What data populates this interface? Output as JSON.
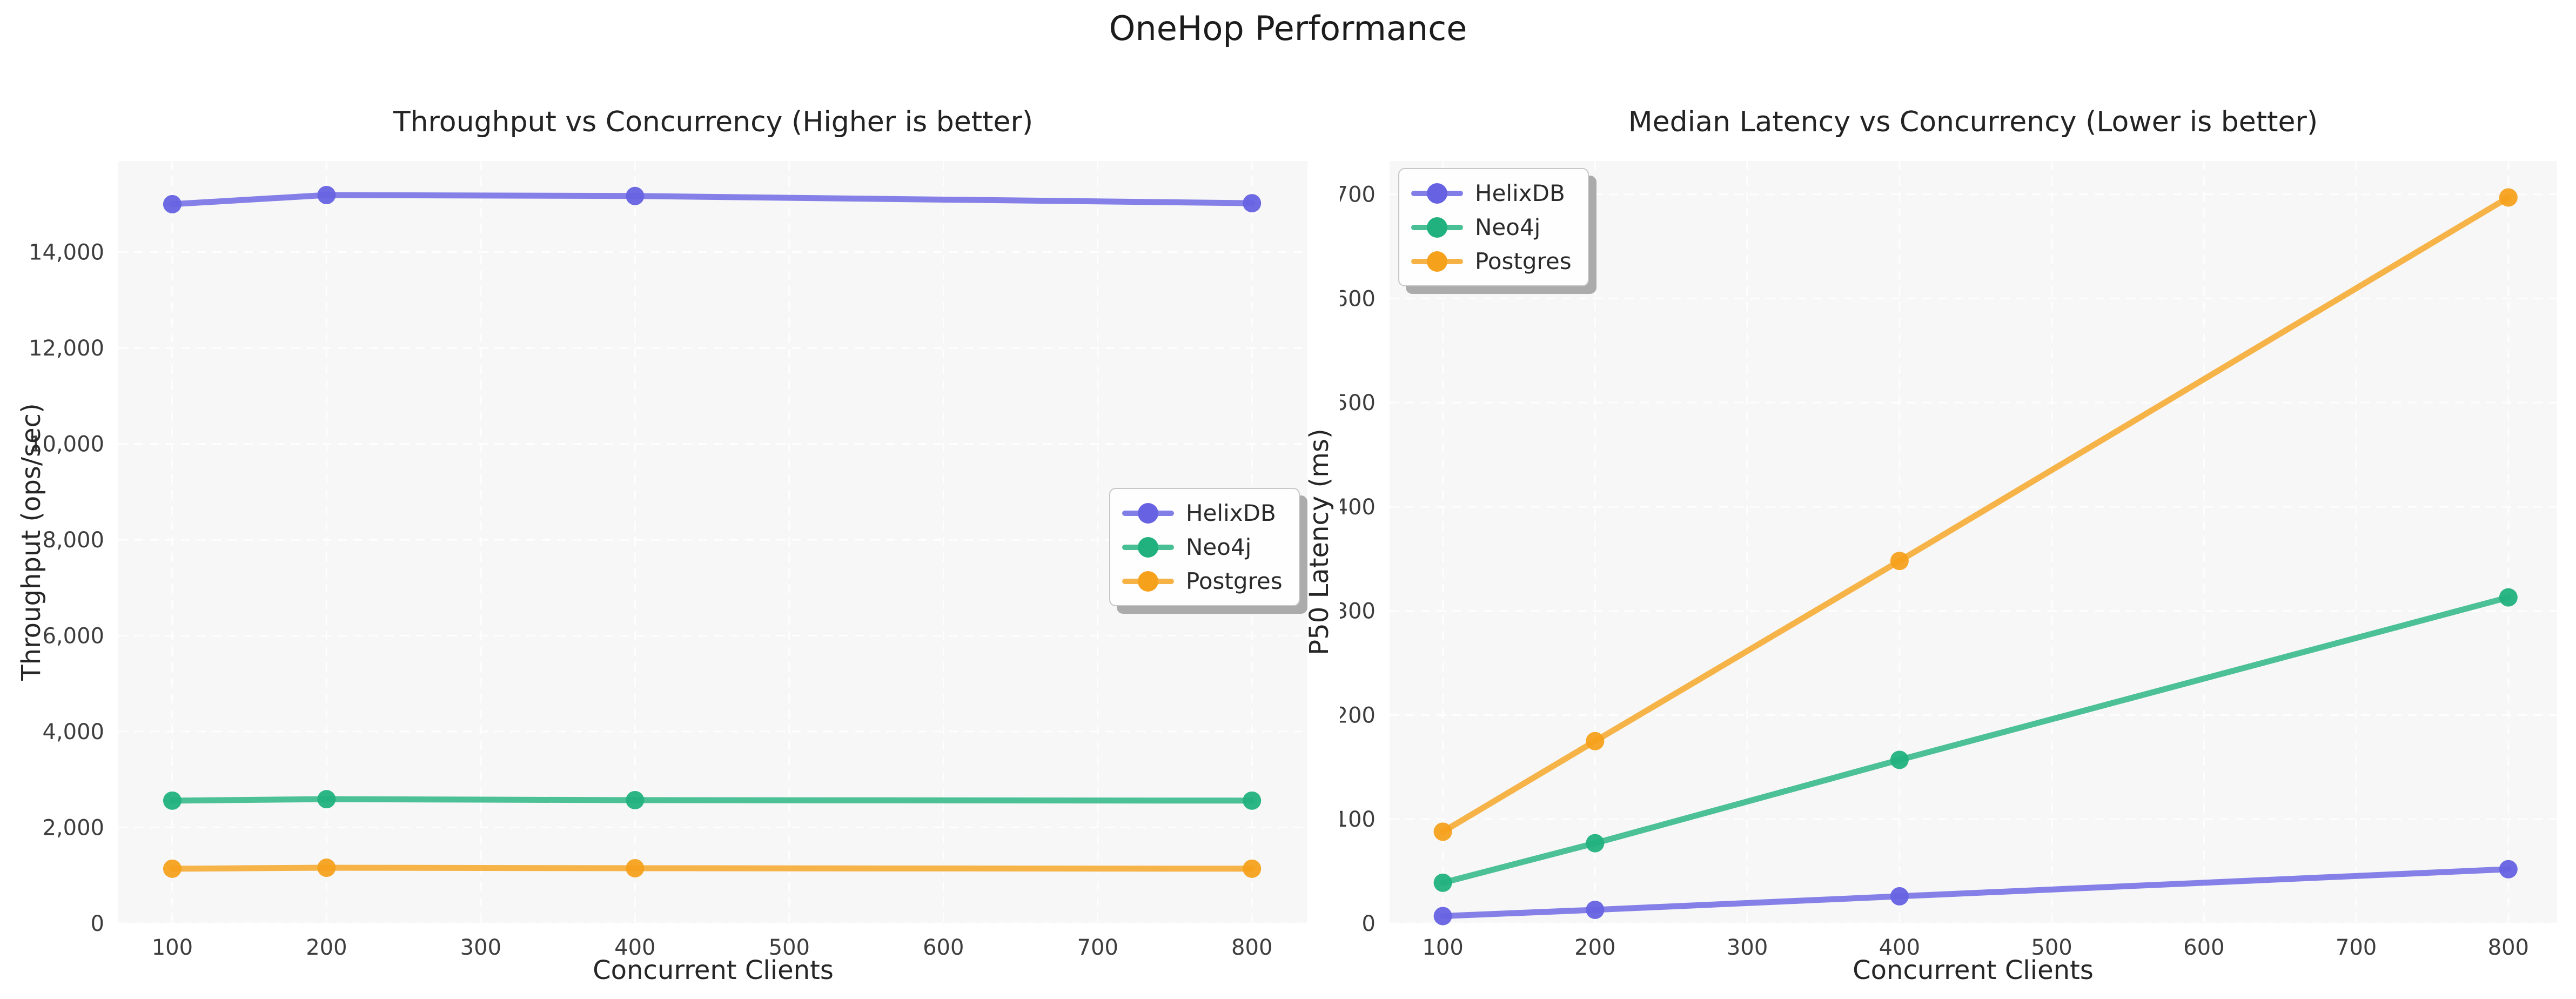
{
  "suptitle": "OneHop Performance",
  "chart_data": [
    {
      "id": "throughput",
      "type": "line",
      "title": "Throughput vs Concurrency (Higher is better)",
      "xlabel": "Concurrent Clients",
      "ylabel": "Throughput (ops/sec)",
      "x": [
        100,
        200,
        400,
        800
      ],
      "xticks": [
        100,
        200,
        300,
        400,
        500,
        600,
        700,
        800
      ],
      "xticklabels": [
        "100",
        "200",
        "300",
        "400",
        "500",
        "600",
        "700",
        "800"
      ],
      "xlim": [
        65,
        836
      ],
      "yticks": [
        0,
        2000,
        4000,
        6000,
        8000,
        10000,
        12000,
        14000
      ],
      "yticklabels": [
        "0",
        "2,000",
        "4,000",
        "6,000",
        "8,000",
        "10,000",
        "12,000",
        "14,000"
      ],
      "ylim": [
        0,
        15900
      ],
      "grid": true,
      "plot_background": "#f7f7f7",
      "grid_color": "#ffffff",
      "legend_position": "center-right",
      "series": [
        {
          "name": "HelixDB",
          "color": "#6662e2",
          "values": [
            15000,
            15190,
            15170,
            15020
          ]
        },
        {
          "name": "Neo4j",
          "color": "#21b17e",
          "values": [
            2560,
            2590,
            2570,
            2560
          ]
        },
        {
          "name": "Postgres",
          "color": "#f5a11c",
          "values": [
            1140,
            1160,
            1150,
            1140
          ]
        }
      ]
    },
    {
      "id": "latency",
      "type": "line",
      "title": "Median Latency vs Concurrency (Lower is better)",
      "xlabel": "Concurrent Clients",
      "ylabel": "P50 Latency (ms)",
      "x": [
        100,
        200,
        400,
        800
      ],
      "xticks": [
        100,
        200,
        300,
        400,
        500,
        600,
        700,
        800
      ],
      "xticklabels": [
        "100",
        "200",
        "300",
        "400",
        "500",
        "600",
        "700",
        "800"
      ],
      "xlim": [
        65,
        832
      ],
      "yticks": [
        0,
        100,
        200,
        300,
        400,
        500,
        600,
        700
      ],
      "yticklabels": [
        "0",
        "100",
        "200",
        "300",
        "400",
        "500",
        "600",
        "700"
      ],
      "ylim": [
        0,
        732
      ],
      "grid": true,
      "plot_background": "#f7f7f7",
      "grid_color": "#ffffff",
      "legend_position": "top-left",
      "series": [
        {
          "name": "HelixDB",
          "color": "#6662e2",
          "values": [
            7,
            13,
            26,
            52
          ]
        },
        {
          "name": "Neo4j",
          "color": "#21b17e",
          "values": [
            39,
            77,
            157,
            313
          ]
        },
        {
          "name": "Postgres",
          "color": "#f5a11c",
          "values": [
            88,
            175,
            348,
            697
          ]
        }
      ]
    }
  ]
}
